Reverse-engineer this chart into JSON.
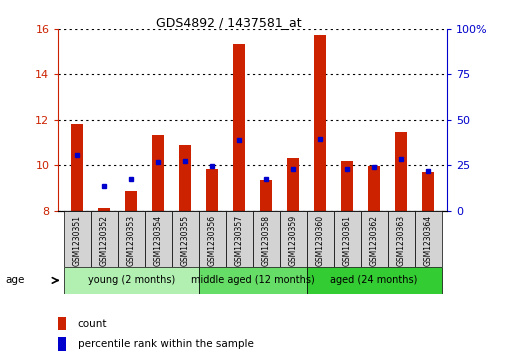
{
  "title": "GDS4892 / 1437581_at",
  "samples": [
    "GSM1230351",
    "GSM1230352",
    "GSM1230353",
    "GSM1230354",
    "GSM1230355",
    "GSM1230356",
    "GSM1230357",
    "GSM1230358",
    "GSM1230359",
    "GSM1230360",
    "GSM1230361",
    "GSM1230362",
    "GSM1230363",
    "GSM1230364"
  ],
  "count_values": [
    11.8,
    8.1,
    8.85,
    11.35,
    10.9,
    9.85,
    15.35,
    9.35,
    10.3,
    15.75,
    10.2,
    9.95,
    11.45,
    9.7
  ],
  "percentile_values": [
    10.45,
    9.1,
    9.4,
    10.15,
    10.2,
    9.95,
    11.1,
    9.4,
    9.85,
    11.15,
    9.85,
    9.9,
    10.25,
    9.75
  ],
  "ymin": 8,
  "ymax": 16,
  "yticks": [
    8,
    10,
    12,
    14,
    16
  ],
  "right_yticks": [
    0,
    25,
    50,
    75,
    100
  ],
  "right_tick_labels": [
    "0",
    "25",
    "50",
    "75",
    "100%"
  ],
  "groups": [
    {
      "label": "young (2 months)",
      "start": 0,
      "end": 5,
      "color": "#b2f0b2"
    },
    {
      "label": "middle aged (12 months)",
      "start": 5,
      "end": 9,
      "color": "#66dd66"
    },
    {
      "label": "aged (24 months)",
      "start": 9,
      "end": 14,
      "color": "#33cc33"
    }
  ],
  "bar_color": "#cc2200",
  "dot_color": "#0000cc",
  "bar_width": 0.45,
  "background_color": "#ffffff",
  "plot_bg_color": "#ffffff",
  "tick_label_color_left": "#cc2200",
  "tick_label_color_right": "#0000cc",
  "grid_color": "#000000",
  "sample_bg_color": "#d3d3d3",
  "age_label": "age"
}
